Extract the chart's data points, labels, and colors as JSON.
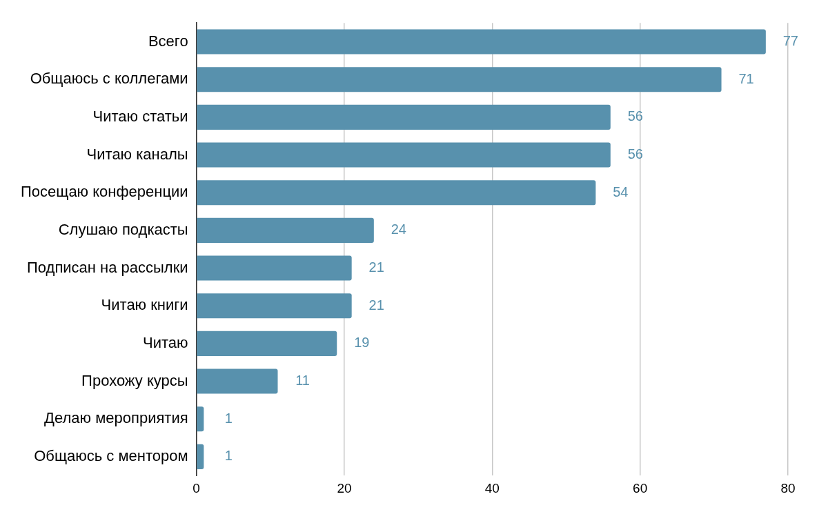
{
  "chart_data": {
    "type": "bar",
    "orientation": "horizontal",
    "categories": [
      "Всего",
      "Общаюсь с коллегами",
      "Читаю статьи",
      "Читаю каналы",
      "Посещаю конференции",
      "Слушаю подкасты",
      "Подписан на рассылки",
      "Читаю книги",
      "Читаю",
      "Прохожу курсы",
      "Делаю мероприятия",
      "Общаюсь с ментором"
    ],
    "values": [
      77,
      71,
      56,
      56,
      54,
      24,
      21,
      21,
      19,
      11,
      1,
      1
    ],
    "color": "#5891ad",
    "xlim": [
      0,
      80
    ],
    "xticks": [
      0,
      20,
      40,
      60,
      80
    ],
    "grid": "x",
    "legend": false,
    "data_labels": true
  }
}
